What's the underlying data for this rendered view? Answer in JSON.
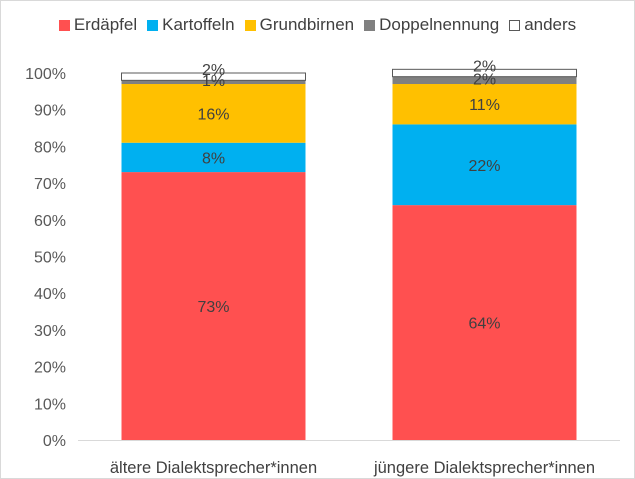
{
  "chart_data": {
    "type": "bar",
    "stacked": true,
    "categories": [
      "ältere Dialektsprecher*innen",
      "jüngere Dialektsprecher*innen"
    ],
    "series": [
      {
        "name": "Erdäpfel",
        "color": "#ff5050",
        "values": [
          73,
          64
        ],
        "labels": [
          "73%",
          "64%"
        ]
      },
      {
        "name": "Kartoffeln",
        "color": "#00b0f0",
        "values": [
          8,
          22
        ],
        "labels": [
          "8%",
          "22%"
        ]
      },
      {
        "name": "Grundbirnen",
        "color": "#ffc000",
        "values": [
          16,
          11
        ],
        "labels": [
          "16%",
          "11%"
        ]
      },
      {
        "name": "Doppelnennung",
        "color": "#808080",
        "values": [
          1,
          2
        ],
        "labels": [
          "1%",
          "2%"
        ]
      },
      {
        "name": "anders",
        "color": "#ffffff",
        "values": [
          2,
          2
        ],
        "labels": [
          "2%",
          "2%"
        ]
      }
    ],
    "yticks": [
      "0%",
      "10%",
      "20%",
      "30%",
      "40%",
      "50%",
      "60%",
      "70%",
      "80%",
      "90%",
      "100%"
    ],
    "ylim": [
      0,
      100
    ],
    "legend_position": "top",
    "grid": false
  }
}
